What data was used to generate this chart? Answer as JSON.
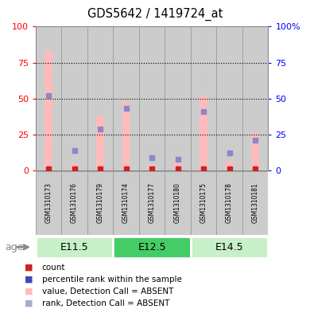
{
  "title": "GDS5642 / 1419724_at",
  "samples": [
    "GSM1310173",
    "GSM1310176",
    "GSM1310179",
    "GSM1310174",
    "GSM1310177",
    "GSM1310180",
    "GSM1310175",
    "GSM1310178",
    "GSM1310181"
  ],
  "age_groups": [
    {
      "label": "E11.5",
      "start": 0,
      "end": 3,
      "color": "#c8f0c8"
    },
    {
      "label": "E12.5",
      "start": 3,
      "end": 6,
      "color": "#44cc66"
    },
    {
      "label": "E14.5",
      "start": 6,
      "end": 9,
      "color": "#c8f0c8"
    }
  ],
  "pink_bars": [
    83,
    5,
    38,
    48,
    4,
    7,
    52,
    7,
    26
  ],
  "blue_markers": [
    52,
    14,
    29,
    43,
    9,
    8,
    41,
    12,
    21
  ],
  "red_markers_y": [
    1,
    1,
    1,
    1,
    1,
    1,
    1,
    1,
    1
  ],
  "ylim": [
    0,
    100
  ],
  "yticks": [
    0,
    25,
    50,
    75,
    100
  ],
  "bar_width": 0.3,
  "bar_color": "#ffbbbb",
  "blue_color": "#8888cc",
  "red_color": "#cc2222",
  "sample_bg": "#cccccc",
  "sample_border": "#999999",
  "legend_colors": [
    "#cc2222",
    "#4444bb",
    "#ffbbbb",
    "#aaaacc"
  ],
  "legend_labels": [
    "count",
    "percentile rank within the sample",
    "value, Detection Call = ABSENT",
    "rank, Detection Call = ABSENT"
  ]
}
